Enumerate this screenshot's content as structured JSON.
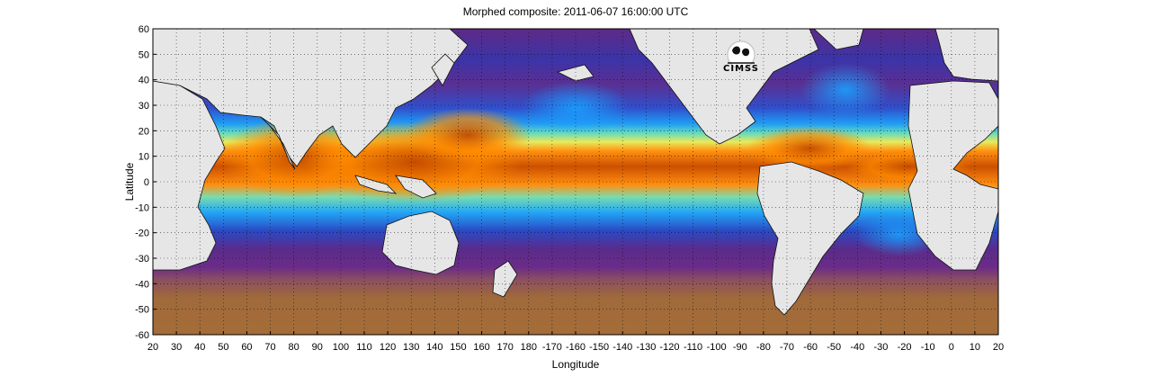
{
  "title": "Morphed composite: 2011-06-07 16:00:00 UTC",
  "logo_text": "CIMSS",
  "map": {
    "xlabel": "Longitude",
    "ylabel": "Latitude",
    "x_ticks": [
      "20",
      "30",
      "40",
      "50",
      "60",
      "70",
      "80",
      "90",
      "100",
      "110",
      "120",
      "130",
      "140",
      "150",
      "160",
      "170",
      "180",
      "-170",
      "-160",
      "-150",
      "-140",
      "-130",
      "-120",
      "-110",
      "-100",
      "-90",
      "-80",
      "-70",
      "-60",
      "-50",
      "-40",
      "-30",
      "-20",
      "-10",
      "0",
      "10",
      "20"
    ],
    "y_ticks": [
      "60",
      "50",
      "40",
      "30",
      "20",
      "10",
      "0",
      "-10",
      "-20",
      "-30",
      "-40",
      "-50",
      "-60"
    ],
    "lon_range": [
      20,
      380
    ],
    "lat_range": [
      -60,
      60
    ],
    "grid": "dotted",
    "land_color": "#e6e6e6",
    "colormap": [
      "#9b6a36",
      "#5c2a86",
      "#2b3fbf",
      "#1aa0ff",
      "#59e3c4",
      "#f0f060",
      "#ff8a00",
      "#c84800"
    ]
  }
}
